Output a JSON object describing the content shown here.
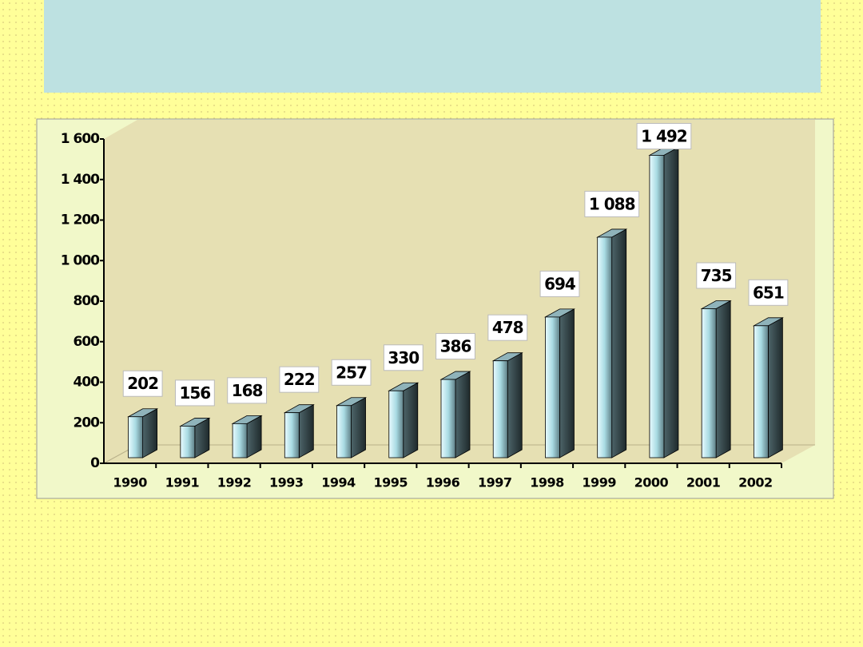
{
  "chart_data": {
    "type": "bar3d",
    "categories": [
      "1990",
      "1991",
      "1992",
      "1993",
      "1994",
      "1995",
      "1996",
      "1997",
      "1998",
      "1999",
      "2000",
      "2001",
      "2002"
    ],
    "values": [
      202,
      156,
      168,
      222,
      257,
      330,
      386,
      478,
      694,
      1088,
      1492,
      735,
      651
    ],
    "value_labels": [
      "202",
      "156",
      "168",
      "222",
      "257",
      "330",
      "386",
      "478",
      "694",
      "1 088",
      "1 492",
      "735",
      "651"
    ],
    "ylim": [
      0,
      1600
    ],
    "yticks": [
      0,
      200,
      400,
      600,
      800,
      {
        "value": 1000,
        "label": "1 000"
      },
      {
        "value": 1200,
        "label": "1 200"
      },
      {
        "value": 1400,
        "label": "1 400"
      },
      {
        "value": 1600,
        "label": "1 600"
      }
    ],
    "color": "#a9dbe3"
  }
}
